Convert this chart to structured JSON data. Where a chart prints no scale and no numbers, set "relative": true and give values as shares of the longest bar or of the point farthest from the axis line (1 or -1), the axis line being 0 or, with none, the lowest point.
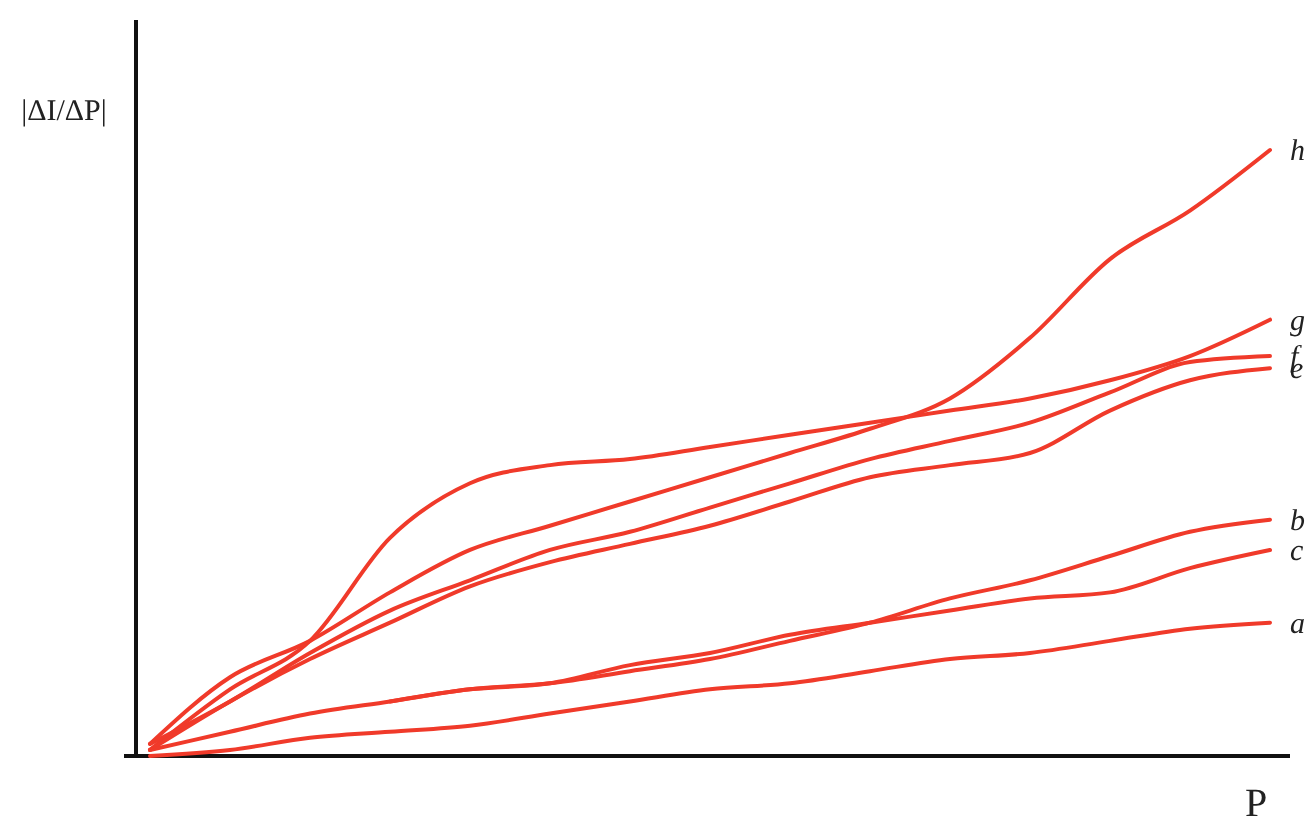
{
  "chart_data": {
    "type": "line",
    "relative": true,
    "xlabel": "P",
    "ylabel": "|ΔI/ΔP|",
    "categories": [
      null,
      null,
      null,
      null,
      null,
      null,
      null,
      null,
      null,
      null,
      null,
      null,
      null,
      null,
      null
    ],
    "marker": "none",
    "series": [
      {
        "name": "h",
        "color": "#f03a2a",
        "values": [
          0.02,
          0.13,
          0.19,
          0.27,
          0.34,
          0.38,
          0.42,
          0.46,
          0.5,
          0.54,
          0.59,
          0.69,
          0.82,
          0.9,
          1
        ]
      },
      {
        "name": "g",
        "color": "#f03a2a",
        "values": [
          0.01,
          0.11,
          0.19,
          0.36,
          0.45,
          0.48,
          0.49,
          0.51,
          0.53,
          0.55,
          0.57,
          0.59,
          0.62,
          0.66,
          0.72
        ]
      },
      {
        "name": "f",
        "color": "#f03a2a",
        "values": [
          0.02,
          0.09,
          0.17,
          0.24,
          0.29,
          0.34,
          0.37,
          0.41,
          0.45,
          0.49,
          0.52,
          0.55,
          0.6,
          0.65,
          0.66
        ]
      },
      {
        "name": "e",
        "color": "#f03a2a",
        "values": [
          0.01,
          0.09,
          0.16,
          0.22,
          0.28,
          0.32,
          0.35,
          0.38,
          0.42,
          0.46,
          0.48,
          0.5,
          0.57,
          0.62,
          0.64
        ]
      },
      {
        "name": "b",
        "color": "#f03a2a",
        "values": [
          0.01,
          0.04,
          0.07,
          0.09,
          0.11,
          0.12,
          0.14,
          0.16,
          0.19,
          0.22,
          0.26,
          0.29,
          0.33,
          0.37,
          0.39
        ]
      },
      {
        "name": "c",
        "color": "#f03a2a",
        "values": [
          null,
          null,
          null,
          0.09,
          0.11,
          0.12,
          0.15,
          0.17,
          0.2,
          0.22,
          0.24,
          0.26,
          0.27,
          0.31,
          0.34
        ]
      },
      {
        "name": "a",
        "color": "#f03a2a",
        "values": [
          0,
          0.01,
          0.03,
          0.04,
          0.05,
          0.07,
          0.09,
          0.11,
          0.12,
          0.14,
          0.16,
          0.17,
          0.19,
          0.21,
          0.22
        ]
      }
    ]
  }
}
